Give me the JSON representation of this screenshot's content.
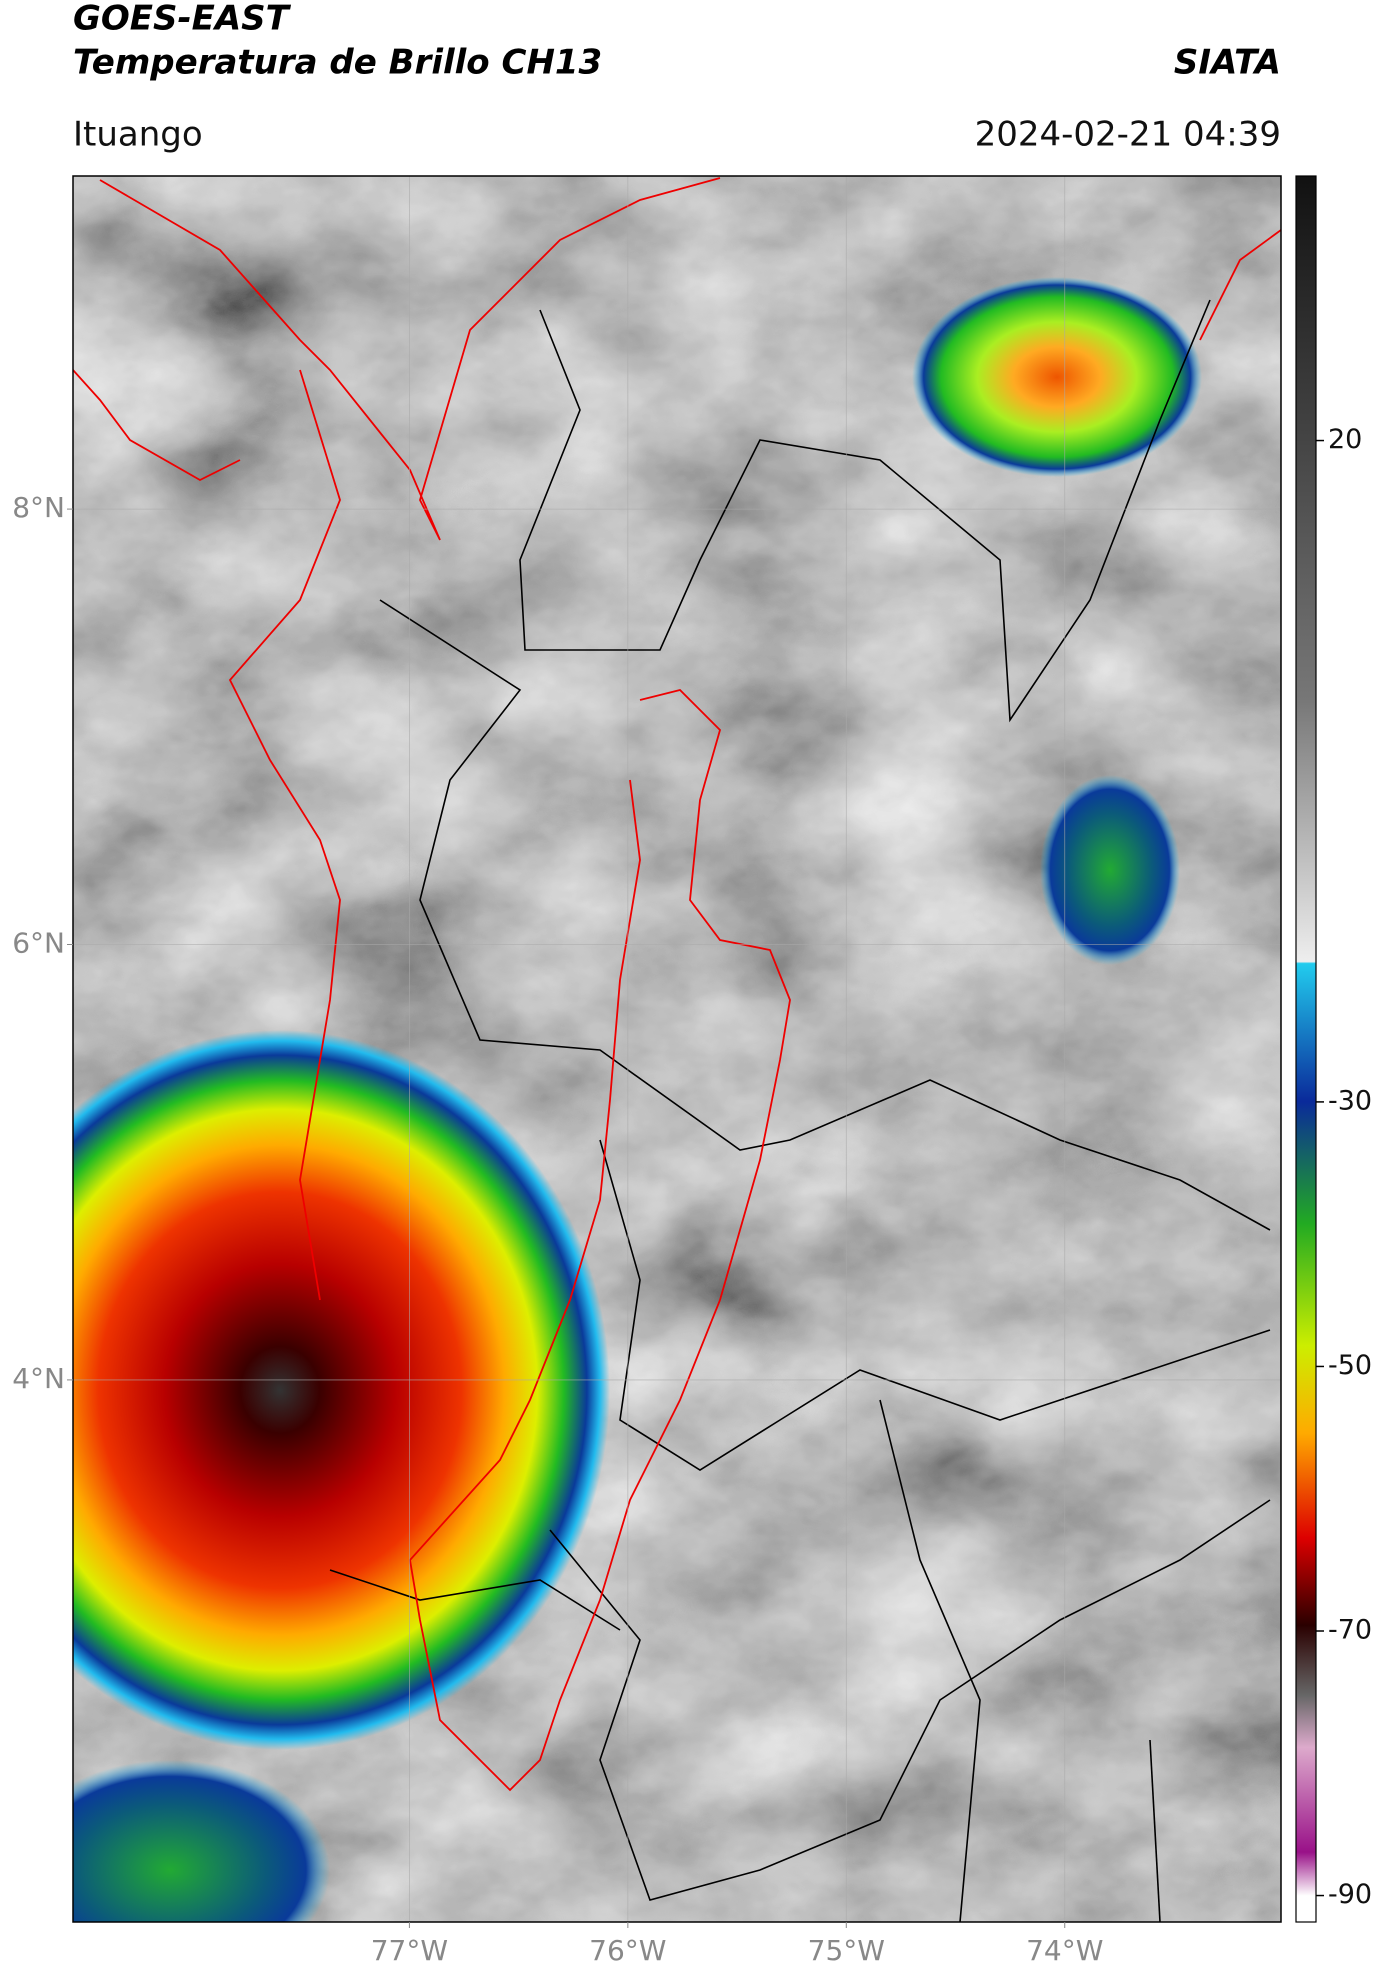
{
  "header": {
    "satellite": "GOES-EAST",
    "product": "Temperatura de Brillo CH13",
    "source": "SIATA",
    "location": "Ituango",
    "datetime": "2024-02-21 04:39"
  },
  "map": {
    "lonlim": [
      -78.54,
      -73.01
    ],
    "latlim": [
      1.51,
      9.53
    ],
    "lat_ticks": [
      {
        "value": 8,
        "label": "8°N"
      },
      {
        "value": 6,
        "label": "6°N"
      },
      {
        "value": 4,
        "label": "4°N"
      }
    ],
    "lon_ticks": [
      {
        "value": -77,
        "label": "77°W"
      },
      {
        "value": -76,
        "label": "76°W"
      },
      {
        "value": -75,
        "label": "75°W"
      },
      {
        "value": -74,
        "label": "74°W"
      }
    ]
  },
  "colorbar": {
    "range": [
      -92,
      40
    ],
    "ticks": [
      20,
      -30,
      -50,
      -70,
      -90
    ]
  }
}
